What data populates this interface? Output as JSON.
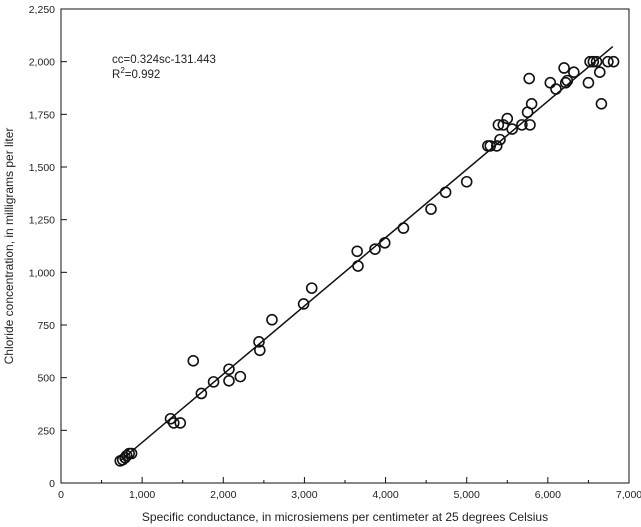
{
  "chart_data": {
    "type": "scatter",
    "xlabel": "Specific conductance, in microsiemens per centimeter at 25 degrees Celsius",
    "ylabel": "Chloride concentration, in milligrams per liter",
    "xlim": [
      0,
      7000
    ],
    "ylim": [
      0,
      2250
    ],
    "xticks": [
      0,
      1000,
      2000,
      3000,
      4000,
      5000,
      6000,
      7000
    ],
    "xtick_labels": [
      "0",
      "1,000",
      "2,000",
      "3,000",
      "4,000",
      "5,000",
      "6,000",
      "7,000"
    ],
    "yticks": [
      0,
      250,
      500,
      750,
      1000,
      1250,
      1500,
      1750,
      2000,
      2250
    ],
    "ytick_labels": [
      "0",
      "250",
      "500",
      "750",
      "1,000",
      "1,250",
      "1,500",
      "1,750",
      "2,000",
      "2,250"
    ],
    "grid": false,
    "annotation": {
      "equation": "cc=0.324sc-131.443",
      "r2_prefix": "R",
      "r2_sup": "2",
      "r2_value": "=0.992"
    },
    "fit_line": {
      "slope": 0.324,
      "intercept": -131.443,
      "x_range": [
        730,
        6800
      ]
    },
    "points": [
      {
        "x": 730,
        "y": 105
      },
      {
        "x": 760,
        "y": 110
      },
      {
        "x": 790,
        "y": 120
      },
      {
        "x": 810,
        "y": 130
      },
      {
        "x": 840,
        "y": 140
      },
      {
        "x": 870,
        "y": 140
      },
      {
        "x": 1350,
        "y": 305
      },
      {
        "x": 1390,
        "y": 285
      },
      {
        "x": 1470,
        "y": 285
      },
      {
        "x": 1630,
        "y": 580
      },
      {
        "x": 1730,
        "y": 425
      },
      {
        "x": 1880,
        "y": 480
      },
      {
        "x": 2070,
        "y": 540
      },
      {
        "x": 2070,
        "y": 485
      },
      {
        "x": 2210,
        "y": 505
      },
      {
        "x": 2440,
        "y": 670
      },
      {
        "x": 2450,
        "y": 630
      },
      {
        "x": 2600,
        "y": 775
      },
      {
        "x": 2990,
        "y": 850
      },
      {
        "x": 3090,
        "y": 925
      },
      {
        "x": 3650,
        "y": 1100
      },
      {
        "x": 3660,
        "y": 1030
      },
      {
        "x": 3870,
        "y": 1110
      },
      {
        "x": 3990,
        "y": 1140
      },
      {
        "x": 4220,
        "y": 1210
      },
      {
        "x": 4560,
        "y": 1300
      },
      {
        "x": 4740,
        "y": 1380
      },
      {
        "x": 5000,
        "y": 1430
      },
      {
        "x": 5260,
        "y": 1600
      },
      {
        "x": 5290,
        "y": 1600
      },
      {
        "x": 5370,
        "y": 1600
      },
      {
        "x": 5390,
        "y": 1700
      },
      {
        "x": 5410,
        "y": 1630
      },
      {
        "x": 5450,
        "y": 1700
      },
      {
        "x": 5500,
        "y": 1730
      },
      {
        "x": 5560,
        "y": 1680
      },
      {
        "x": 5680,
        "y": 1700
      },
      {
        "x": 5750,
        "y": 1760
      },
      {
        "x": 5770,
        "y": 1920
      },
      {
        "x": 5780,
        "y": 1700
      },
      {
        "x": 5800,
        "y": 1800
      },
      {
        "x": 6030,
        "y": 1900
      },
      {
        "x": 6100,
        "y": 1870
      },
      {
        "x": 6200,
        "y": 1970
      },
      {
        "x": 6220,
        "y": 1900
      },
      {
        "x": 6240,
        "y": 1910
      },
      {
        "x": 6320,
        "y": 1950
      },
      {
        "x": 6500,
        "y": 1900
      },
      {
        "x": 6520,
        "y": 2000
      },
      {
        "x": 6560,
        "y": 2000
      },
      {
        "x": 6600,
        "y": 2000
      },
      {
        "x": 6640,
        "y": 1950
      },
      {
        "x": 6660,
        "y": 1800
      },
      {
        "x": 6740,
        "y": 2000
      },
      {
        "x": 6810,
        "y": 2000
      }
    ]
  }
}
